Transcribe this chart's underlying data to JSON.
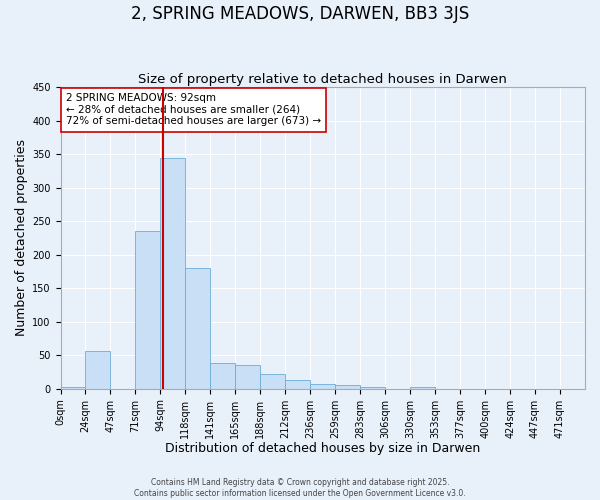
{
  "title": "2, SPRING MEADOWS, DARWEN, BB3 3JS",
  "subtitle": "Size of property relative to detached houses in Darwen",
  "xlabel": "Distribution of detached houses by size in Darwen",
  "ylabel": "Number of detached properties",
  "bar_color": "#c9dff5",
  "bar_edge_color": "#6aaed6",
  "background_color": "#e8f0fa",
  "fig_background_color": "#e8f0fa",
  "grid_color": "#ffffff",
  "vline_x": 94,
  "vline_color": "#cc0000",
  "bin_width": 23,
  "bins_start": 0,
  "num_bins": 21,
  "bar_heights": [
    2,
    57,
    0,
    235,
    345,
    180,
    38,
    35,
    22,
    13,
    7,
    5,
    2,
    0,
    2,
    0,
    0,
    0,
    0,
    0,
    0
  ],
  "xlim": [
    0,
    483
  ],
  "ylim": [
    0,
    450
  ],
  "yticks": [
    0,
    50,
    100,
    150,
    200,
    250,
    300,
    350,
    400,
    450
  ],
  "xtick_labels": [
    "0sqm",
    "24sqm",
    "47sqm",
    "71sqm",
    "94sqm",
    "118sqm",
    "141sqm",
    "165sqm",
    "188sqm",
    "212sqm",
    "236sqm",
    "259sqm",
    "283sqm",
    "306sqm",
    "330sqm",
    "353sqm",
    "377sqm",
    "400sqm",
    "424sqm",
    "447sqm",
    "471sqm"
  ],
  "annotation_text": "2 SPRING MEADOWS: 92sqm\n← 28% of detached houses are smaller (264)\n72% of semi-detached houses are larger (673) →",
  "footer_line1": "Contains HM Land Registry data © Crown copyright and database right 2025.",
  "footer_line2": "Contains public sector information licensed under the Open Government Licence v3.0.",
  "title_fontsize": 12,
  "subtitle_fontsize": 9.5,
  "axis_label_fontsize": 9,
  "tick_fontsize": 7,
  "annotation_fontsize": 7.5,
  "footer_fontsize": 5.5
}
